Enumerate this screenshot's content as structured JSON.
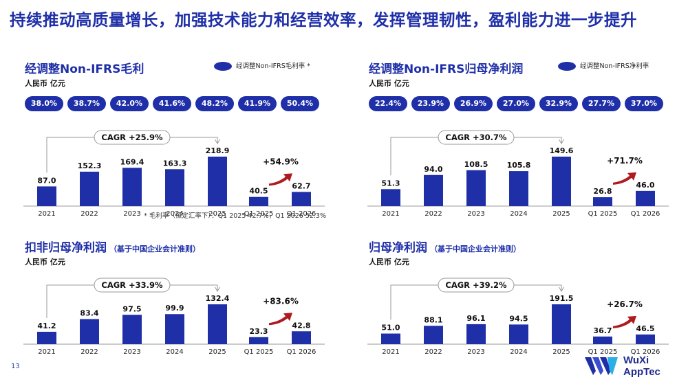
{
  "headline": "持续推动高质量增长，加强技术能力和经营效率，发挥管理韧性，盈利能力进一步提升",
  "page_number": "13",
  "logo": {
    "line1": "WuXi",
    "line2": "AppTec"
  },
  "colors": {
    "bar": "#1f2fa8",
    "arrow": "#b0191e",
    "title": "#1f2fa8"
  },
  "panels": [
    {
      "title": "经调整Non-IFRS毛利",
      "subtitle": "",
      "unit": "人民币 亿元",
      "legend": "经调整Non-IFRS毛利率 *",
      "pills": [
        "38.0%",
        "38.7%",
        "42.0%",
        "41.6%",
        "48.2%",
        "41.9%",
        "50.4%"
      ],
      "cagr": "CAGR +25.9%",
      "growth": "+54.9%",
      "footnote": "* 毛利率（恒定汇率下）：Q1 2025 42.7%，Q1 2026 52.3%"
    },
    {
      "title": "经调整Non-IFRS归母净利润",
      "subtitle": "",
      "unit": "人民币 亿元",
      "legend": "经调整Non-IFRS净利率",
      "pills": [
        "22.4%",
        "23.9%",
        "26.9%",
        "27.0%",
        "32.9%",
        "27.7%",
        "37.0%"
      ],
      "cagr": "CAGR +30.7%",
      "growth": "+71.7%",
      "footnote": ""
    },
    {
      "title": "扣非归母净利润",
      "subtitle": "（基于中国企业会计准则）",
      "unit": "人民币 亿元",
      "legend": "",
      "pills": [],
      "cagr": "CAGR +33.9%",
      "growth": "+83.6%",
      "footnote": ""
    },
    {
      "title": "归母净利润",
      "subtitle": "（基于中国企业会计准则）",
      "unit": "人民币 亿元",
      "legend": "",
      "pills": [],
      "cagr": "CAGR +39.2%",
      "growth": "+26.7%",
      "footnote": ""
    }
  ],
  "chart_data": [
    {
      "type": "bar",
      "categories": [
        "2021",
        "2022",
        "2023",
        "2024",
        "2025",
        "Q1 2025",
        "Q1 2026"
      ],
      "values": [
        87.0,
        152.3,
        169.4,
        163.3,
        218.9,
        40.5,
        62.7
      ],
      "labels": [
        "87.0",
        "152.3",
        "169.4",
        "163.3",
        "218.9",
        "40.5",
        "62.7"
      ]
    },
    {
      "type": "bar",
      "categories": [
        "2021",
        "2022",
        "2023",
        "2024",
        "2025",
        "Q1 2025",
        "Q1 2026"
      ],
      "values": [
        51.3,
        94.0,
        108.5,
        105.8,
        149.6,
        26.8,
        46.0
      ],
      "labels": [
        "51.3",
        "94.0",
        "108.5",
        "105.8",
        "149.6",
        "26.8",
        "46.0"
      ]
    },
    {
      "type": "bar",
      "categories": [
        "2021",
        "2022",
        "2023",
        "2024",
        "2025",
        "Q1 2025",
        "Q1 2026"
      ],
      "values": [
        41.2,
        83.4,
        97.5,
        99.9,
        132.4,
        23.3,
        42.8
      ],
      "labels": [
        "41.2",
        "83.4",
        "97.5",
        "99.9",
        "132.4",
        "23.3",
        "42.8"
      ]
    },
    {
      "type": "bar",
      "categories": [
        "2021",
        "2022",
        "2023",
        "2024",
        "2025",
        "Q1 2025",
        "Q1 2026"
      ],
      "values": [
        51.0,
        88.1,
        96.1,
        94.5,
        191.5,
        36.7,
        46.5
      ],
      "labels": [
        "51.0",
        "88.1",
        "96.1",
        "94.5",
        "191.5",
        "36.7",
        "46.5"
      ]
    }
  ]
}
